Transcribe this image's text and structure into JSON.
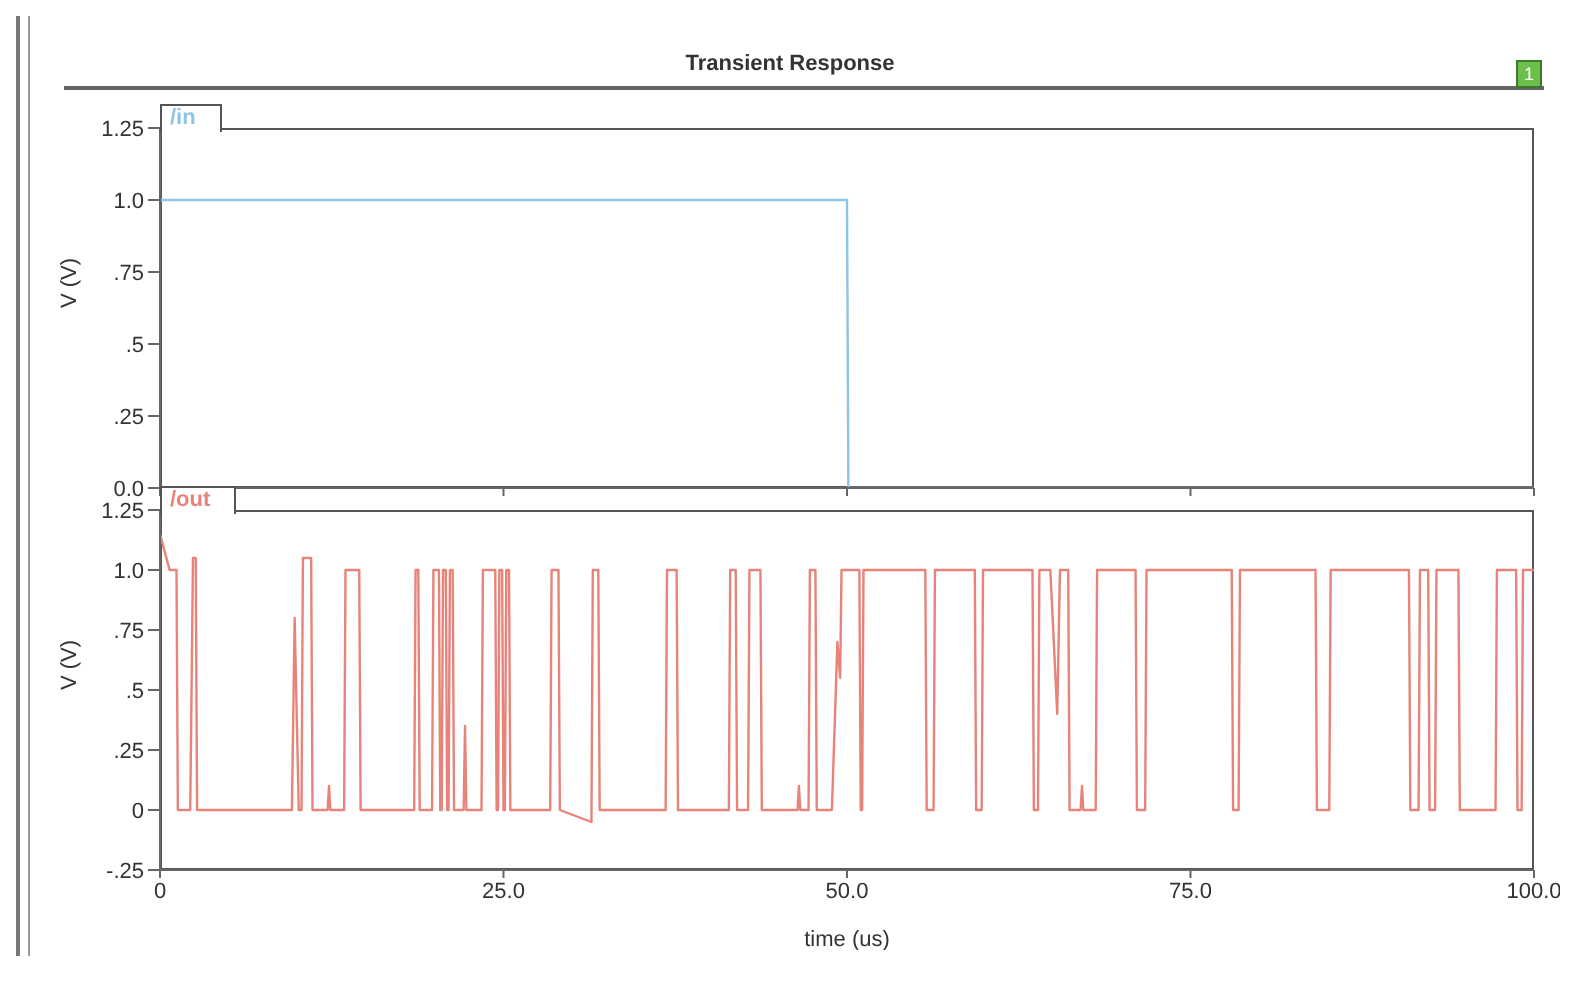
{
  "chart_data": [
    {
      "type": "line",
      "title": "Transient Response",
      "ylabel": "V (V)",
      "annotations": [
        "1"
      ],
      "series": [
        {
          "name": "/in",
          "color": "#8ec3e6",
          "x": [
            0,
            50,
            50.1,
            100
          ],
          "values": [
            1,
            1,
            0,
            0
          ]
        }
      ],
      "xlim": [
        0,
        100
      ],
      "xticks": [
        {
          "value": 0,
          "label": null
        },
        {
          "value": 25,
          "label": null
        },
        {
          "value": 50,
          "label": null
        },
        {
          "value": 75,
          "label": null
        },
        {
          "value": 100,
          "label": null
        }
      ],
      "ylim": [
        0,
        1.25
      ],
      "yticks": [
        {
          "value": 0,
          "label": "0.0"
        },
        {
          "value": 0.25,
          "label": ".25"
        },
        {
          "value": 0.5,
          "label": ".5"
        },
        {
          "value": 0.75,
          "label": ".75"
        },
        {
          "value": 1,
          "label": "1.0"
        },
        {
          "value": 1.25,
          "label": "1.25"
        }
      ],
      "tick_labels": "y"
    },
    {
      "type": "line",
      "xlabel": "time (us)",
      "ylabel": "V (V)",
      "series": [
        {
          "name": "/out",
          "color": "#e8837a",
          "x": [
            0,
            0.7,
            1.2,
            1.3,
            2.2,
            2.4,
            2.6,
            2.7,
            9.6,
            9.8,
            10.1,
            10.3,
            10.4,
            11.0,
            11.1,
            12.2,
            12.3,
            12.4,
            13.4,
            13.5,
            14.5,
            14.6,
            18.5,
            18.6,
            18.8,
            18.9,
            19.8,
            19.9,
            20.3,
            20.4,
            20.5,
            20.6,
            20.8,
            20.9,
            21.0,
            21.1,
            21.3,
            21.4,
            22.1,
            22.2,
            22.3,
            23.4,
            23.5,
            24.4,
            24.5,
            24.6,
            24.7,
            24.9,
            25.0,
            25.1,
            25.2,
            25.4,
            25.5,
            28.4,
            28.5,
            29.0,
            29.1,
            31.4,
            31.5,
            31.9,
            32.0,
            36.8,
            36.9,
            37.6,
            37.7,
            41.4,
            41.5,
            41.9,
            42.0,
            42.8,
            42.9,
            43.7,
            43.8,
            46.4,
            46.5,
            46.6,
            47.2,
            47.3,
            47.7,
            47.8,
            48.9,
            49.3,
            49.5,
            49.6,
            50.9,
            51.0,
            51.1,
            51.2,
            55.7,
            55.8,
            56.3,
            56.4,
            59.3,
            59.4,
            59.8,
            59.9,
            63.5,
            63.6,
            63.9,
            64.0,
            64.8,
            65.3,
            65.5,
            66.1,
            66.2,
            67.0,
            67.1,
            67.2,
            68.1,
            68.2,
            71.0,
            71.1,
            71.7,
            71.8,
            78.0,
            78.1,
            78.5,
            78.6,
            84.1,
            84.2,
            85.1,
            85.2,
            90.9,
            91.0,
            91.6,
            91.7,
            92.3,
            92.4,
            92.8,
            92.9,
            94.5,
            94.6,
            97.2,
            97.3,
            98.7,
            98.8,
            99.1,
            99.2,
            100
          ],
          "values": [
            1.15,
            1.0,
            1.0,
            0,
            0,
            1.05,
            1.05,
            0,
            0,
            0.8,
            0,
            0,
            1.05,
            1.05,
            0,
            0,
            0.1,
            0,
            0,
            1.0,
            1.0,
            0,
            0,
            1.0,
            1.0,
            0,
            0,
            1.0,
            1.0,
            0,
            0,
            1.0,
            1.0,
            0,
            0,
            1.0,
            1.0,
            0,
            0,
            0.35,
            0,
            0,
            1.0,
            1.0,
            0,
            0,
            1.0,
            1.0,
            0,
            0,
            1.0,
            1.0,
            0,
            0,
            1.0,
            1.0,
            0,
            -0.05,
            1.0,
            1.0,
            0,
            0,
            1.0,
            1.0,
            0,
            0,
            1.0,
            1.0,
            0,
            0,
            1.0,
            1.0,
            0,
            0,
            0.1,
            0,
            0,
            1.0,
            1.0,
            0,
            0,
            0.7,
            0.55,
            1.0,
            1.0,
            0,
            0,
            1.0,
            1.0,
            0,
            0,
            1.0,
            1.0,
            0,
            0,
            1.0,
            1.0,
            0,
            0,
            1.0,
            1.0,
            0.4,
            1.0,
            1.0,
            0,
            0,
            0.1,
            0,
            0,
            1.0,
            1.0,
            0,
            0,
            1.0,
            1.0,
            0,
            0,
            1.0,
            1.0,
            0,
            0,
            1.0,
            1.0,
            0,
            0,
            1.0,
            1.0,
            0,
            0,
            1.0,
            1.0,
            0,
            0,
            1.0,
            1.0,
            0,
            0,
            1.0,
            1.0
          ]
        }
      ],
      "xlim": [
        0,
        100
      ],
      "xticks": [
        0,
        {
          "value": 25,
          "label": "25.0"
        },
        {
          "value": 50,
          "label": "50.0"
        },
        {
          "value": 75,
          "label": "75.0"
        },
        {
          "value": 100,
          "label": "100.0"
        }
      ],
      "ylim": [
        -0.25,
        1.25
      ],
      "yticks": [
        {
          "value": -0.25,
          "label": "-.25"
        },
        0,
        {
          "value": 0.25,
          "label": ".25"
        },
        {
          "value": 0.5,
          "label": ".5"
        },
        {
          "value": 0.75,
          "label": ".75"
        },
        {
          "value": 1,
          "label": "1.0"
        },
        {
          "value": 1.25,
          "label": "1.25"
        }
      ]
    }
  ]
}
